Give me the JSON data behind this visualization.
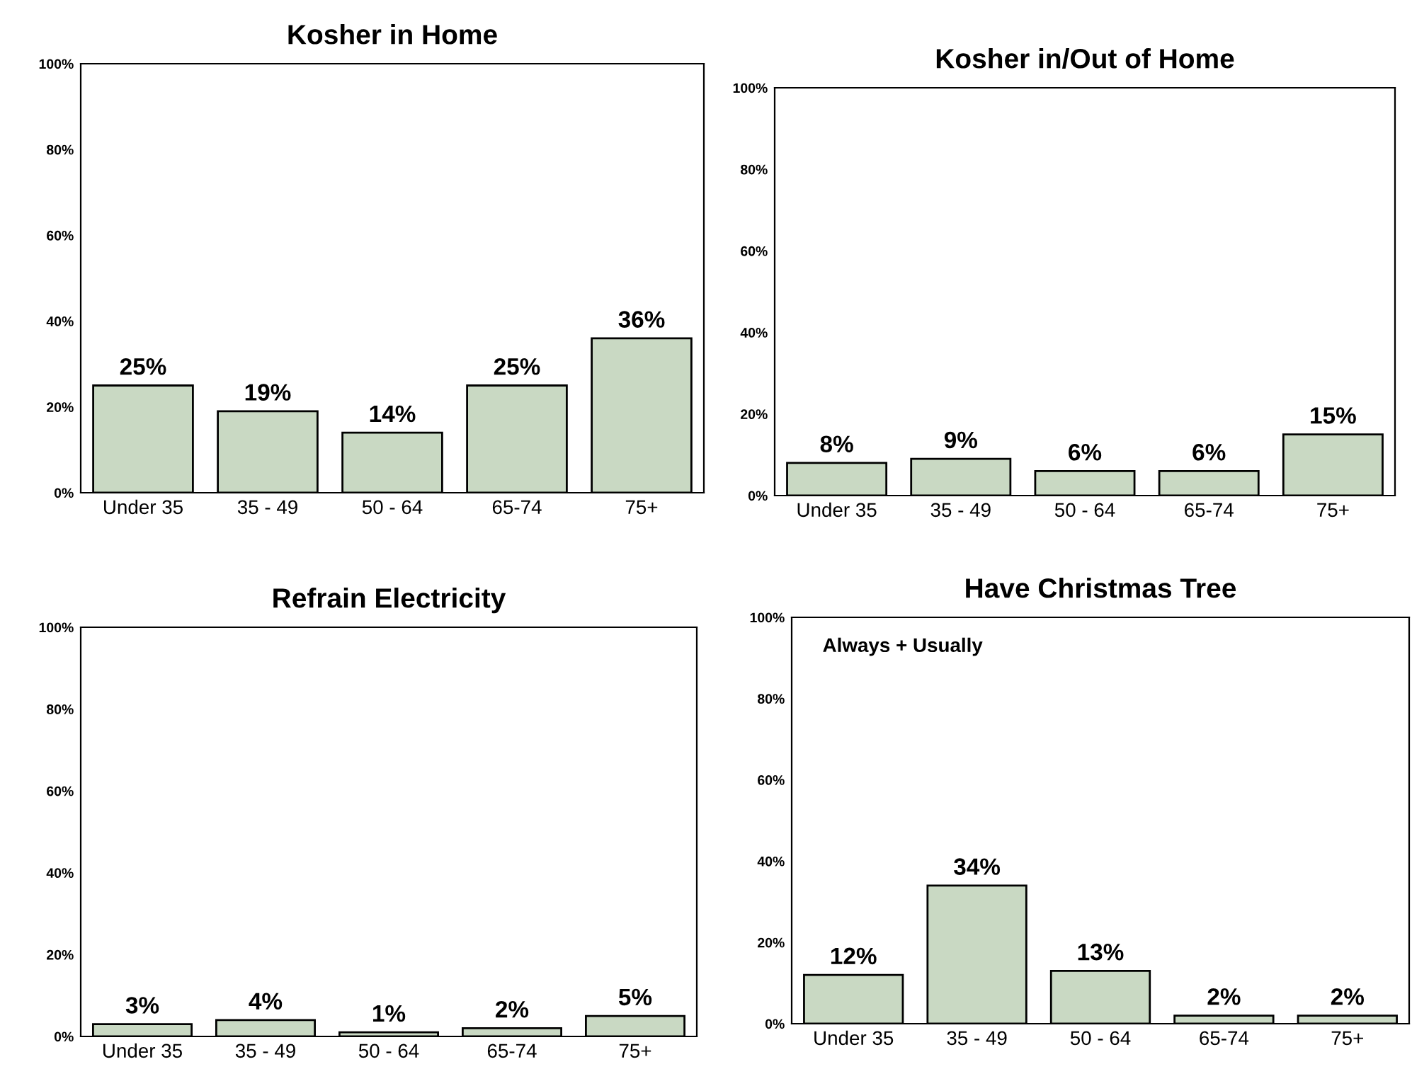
{
  "chart_data": [
    {
      "type": "bar",
      "title": "Kosher in Home",
      "categories": [
        "Under 35",
        "35 - 49",
        "50 - 64",
        "65-74",
        "75+"
      ],
      "values": [
        25,
        19,
        14,
        25,
        36
      ],
      "color": "#c9d9c3",
      "ylim": [
        0,
        100
      ],
      "yticks": [
        {
          "value": 0,
          "label": "0%"
        },
        {
          "value": 20,
          "label": "20%"
        },
        {
          "value": 40,
          "label": "40%"
        },
        {
          "value": 60,
          "label": "60%"
        },
        {
          "value": 80,
          "label": "80%"
        },
        {
          "value": 100,
          "label": "100%"
        }
      ],
      "value_labels": [
        "25%",
        "19%",
        "14%",
        "25%",
        "36%"
      ],
      "grid": false
    },
    {
      "type": "bar",
      "title": "Kosher in/Out of Home",
      "categories": [
        "Under 35",
        "35 - 49",
        "50 - 64",
        "65-74",
        "75+"
      ],
      "values": [
        8,
        9,
        6,
        6,
        15
      ],
      "color": "#c9d9c3",
      "ylim": [
        0,
        100
      ],
      "yticks": [
        {
          "value": 0,
          "label": "0%"
        },
        {
          "value": 20,
          "label": "20%"
        },
        {
          "value": 40,
          "label": "40%"
        },
        {
          "value": 60,
          "label": "60%"
        },
        {
          "value": 80,
          "label": "80%"
        },
        {
          "value": 100,
          "label": "100%"
        }
      ],
      "value_labels": [
        "8%",
        "9%",
        "6%",
        "6%",
        "15%"
      ],
      "grid": false
    },
    {
      "type": "bar",
      "title": "Refrain Electricity",
      "categories": [
        "Under 35",
        "35 - 49",
        "50 - 64",
        "65-74",
        "75+"
      ],
      "values": [
        3,
        4,
        1,
        2,
        5
      ],
      "color": "#c9d9c3",
      "ylim": [
        0,
        100
      ],
      "yticks": [
        {
          "value": 0,
          "label": "0%"
        },
        {
          "value": 20,
          "label": "20%"
        },
        {
          "value": 40,
          "label": "40%"
        },
        {
          "value": 60,
          "label": "60%"
        },
        {
          "value": 80,
          "label": "80%"
        },
        {
          "value": 100,
          "label": "100%"
        }
      ],
      "value_labels": [
        "3%",
        "4%",
        "1%",
        "2%",
        "5%"
      ],
      "grid": false
    },
    {
      "type": "bar",
      "title": "Have Christmas Tree",
      "annotations": [
        "Always + Usually"
      ],
      "categories": [
        "Under 35",
        "35 - 49",
        "50 - 64",
        "65-74",
        "75+"
      ],
      "values": [
        12,
        34,
        13,
        2,
        2
      ],
      "color": "#c9d9c3",
      "ylim": [
        0,
        100
      ],
      "yticks": [
        {
          "value": 0,
          "label": "0%"
        },
        {
          "value": 20,
          "label": "20%"
        },
        {
          "value": 40,
          "label": "40%"
        },
        {
          "value": 60,
          "label": "60%"
        },
        {
          "value": 80,
          "label": "80%"
        },
        {
          "value": 100,
          "label": "100%"
        }
      ],
      "value_labels": [
        "12%",
        "34%",
        "13%",
        "2%",
        "2%"
      ],
      "grid": false
    }
  ]
}
